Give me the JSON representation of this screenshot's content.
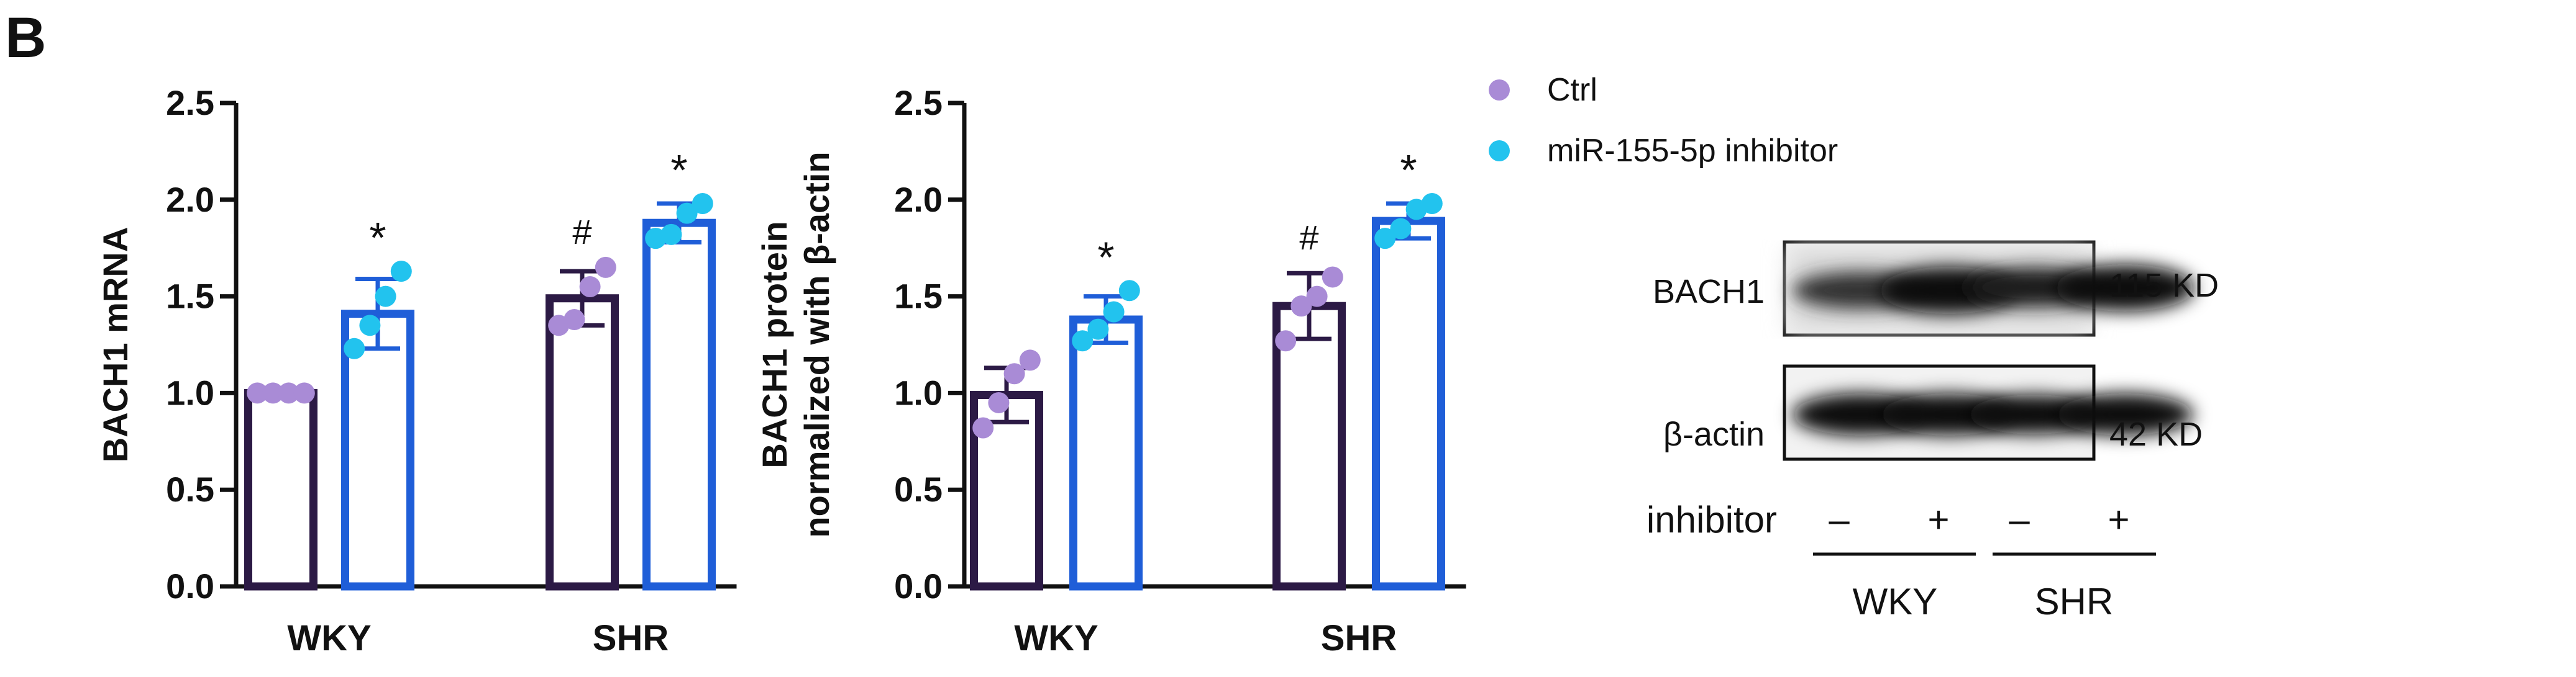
{
  "panel_label": "B",
  "colors": {
    "ctrl_bar": "#2c1a45",
    "ctrl_dot": "#a98bd6",
    "inhibitor_bar": "#1f5ed8",
    "inhibitor_dot": "#22c3ee",
    "axis": "#111111"
  },
  "legend": {
    "items": [
      {
        "label": "Ctrl",
        "color": "#a98bd6"
      },
      {
        "label": "miR-155-5p inhibitor",
        "color": "#22c3ee"
      }
    ]
  },
  "chart_data": [
    {
      "type": "bar",
      "ylabel": "BACH1 mRNA",
      "ylabel_lines": [
        "BACH1 mRNA"
      ],
      "ylim": [
        0,
        2.5
      ],
      "yticks": [
        "0.0",
        "0.5",
        "1.0",
        "1.5",
        "2.0",
        "2.5"
      ],
      "categories": [
        "WKY",
        "SHR"
      ],
      "series": [
        {
          "name": "Ctrl",
          "values": [
            1.0,
            1.49
          ],
          "errors": [
            0.01,
            0.14
          ],
          "points": [
            [
              1.0,
              1.0,
              1.0,
              1.0
            ],
            [
              1.35,
              1.38,
              1.55,
              1.65
            ]
          ],
          "labels": [
            "",
            "#"
          ]
        },
        {
          "name": "miR-155-5p inhibitor",
          "values": [
            1.41,
            1.88
          ],
          "errors": [
            0.18,
            0.1
          ],
          "points": [
            [
              1.23,
              1.35,
              1.5,
              1.63
            ],
            [
              1.8,
              1.82,
              1.93,
              1.98
            ]
          ],
          "labels": [
            "*",
            "*"
          ]
        }
      ]
    },
    {
      "type": "bar",
      "ylabel": "BACH1 protein normalized with β-actin",
      "ylabel_lines": [
        "BACH1 protein",
        "normalized with β-actin"
      ],
      "ylim": [
        0,
        2.5
      ],
      "yticks": [
        "0.0",
        "0.5",
        "1.0",
        "1.5",
        "2.0",
        "2.5"
      ],
      "categories": [
        "WKY",
        "SHR"
      ],
      "series": [
        {
          "name": "Ctrl",
          "values": [
            0.99,
            1.45
          ],
          "errors": [
            0.14,
            0.17
          ],
          "points": [
            [
              0.82,
              0.95,
              1.1,
              1.17
            ],
            [
              1.27,
              1.45,
              1.5,
              1.6
            ]
          ],
          "labels": [
            "",
            "#"
          ]
        },
        {
          "name": "miR-155-5p inhibitor",
          "values": [
            1.38,
            1.89
          ],
          "errors": [
            0.12,
            0.09
          ],
          "points": [
            [
              1.27,
              1.33,
              1.42,
              1.53
            ],
            [
              1.8,
              1.85,
              1.95,
              1.98
            ]
          ],
          "labels": [
            "*",
            "*"
          ]
        }
      ]
    }
  ],
  "western_blot": {
    "bands": [
      {
        "label": "BACH1",
        "size": "115 KD"
      },
      {
        "label": "β-actin",
        "size": "42 KD"
      }
    ],
    "treatment_label": "inhibitor",
    "lanes": [
      "–",
      "+",
      "–",
      "+"
    ],
    "groups": [
      "WKY",
      "SHR"
    ]
  }
}
